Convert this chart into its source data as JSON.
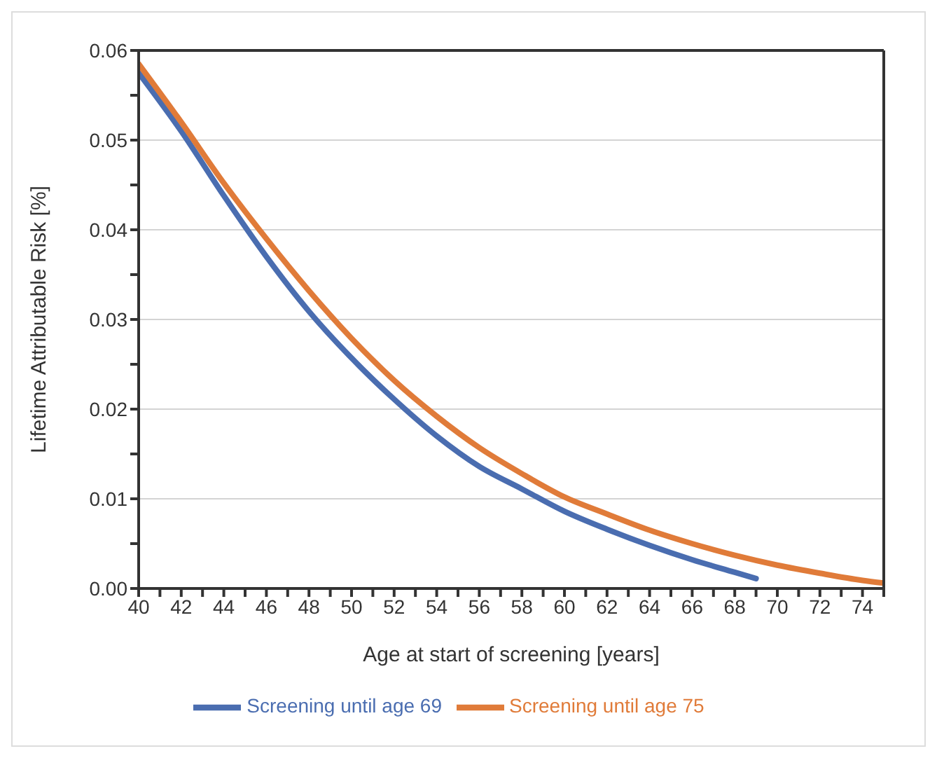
{
  "chart_data": {
    "type": "line",
    "xlabel": "Age at start of screening [years]",
    "ylabel": "Lifetime Attributable Risk [%]",
    "xlim": [
      40,
      75
    ],
    "xticks": [
      40,
      {
        "value": 41,
        "label": null
      },
      42,
      {
        "value": 43,
        "label": null
      },
      44,
      {
        "value": 45,
        "label": null
      },
      46,
      {
        "value": 47,
        "label": null
      },
      48,
      {
        "value": 49,
        "label": null
      },
      50,
      {
        "value": 51,
        "label": null
      },
      52,
      {
        "value": 53,
        "label": null
      },
      54,
      {
        "value": 55,
        "label": null
      },
      56,
      {
        "value": 57,
        "label": null
      },
      58,
      {
        "value": 59,
        "label": null
      },
      60,
      {
        "value": 61,
        "label": null
      },
      62,
      {
        "value": 63,
        "label": null
      },
      64,
      {
        "value": 65,
        "label": null
      },
      66,
      {
        "value": 67,
        "label": null
      },
      68,
      {
        "value": 69,
        "label": null
      },
      70,
      {
        "value": 71,
        "label": null
      },
      72,
      {
        "value": 73,
        "label": null
      },
      74,
      {
        "value": 75,
        "label": null
      }
    ],
    "ylim": [
      0,
      0.06
    ],
    "yticks": [
      {
        "value": 0,
        "label": "0.00"
      },
      {
        "value": 0.005,
        "label": null
      },
      {
        "value": 0.01,
        "label": "0.01"
      },
      {
        "value": 0.015,
        "label": null
      },
      {
        "value": 0.02,
        "label": "0.02"
      },
      {
        "value": 0.025,
        "label": null
      },
      {
        "value": 0.03,
        "label": "0.03"
      },
      {
        "value": 0.035,
        "label": null
      },
      {
        "value": 0.04,
        "label": "0.04"
      },
      {
        "value": 0.045,
        "label": null
      },
      {
        "value": 0.05,
        "label": "0.05"
      },
      {
        "value": 0.055,
        "label": null
      },
      {
        "value": 0.06,
        "label": "0.06"
      }
    ],
    "grid": "y",
    "legend": "bottom",
    "marker": "none",
    "line_style": "solid",
    "series": [
      {
        "name": "Screening until age 69",
        "color": "#4a6db0",
        "x": [
          40,
          42,
          44,
          46,
          48,
          50,
          52,
          54,
          56,
          58,
          60,
          62,
          64,
          66,
          68,
          69
        ],
        "values": [
          0.0575,
          0.051,
          0.0438,
          0.037,
          0.0309,
          0.0257,
          0.0211,
          0.017,
          0.0136,
          0.0111,
          0.0086,
          0.0066,
          0.0048,
          0.0032,
          0.0018,
          0.0011
        ]
      },
      {
        "name": "Screening until age 75",
        "color": "#e07b39",
        "x": [
          40,
          42,
          44,
          46,
          48,
          50,
          52,
          54,
          56,
          58,
          60,
          62,
          64,
          66,
          68,
          70,
          72,
          74,
          75
        ],
        "values": [
          0.0585,
          0.052,
          0.0452,
          0.039,
          0.0332,
          0.0279,
          0.0232,
          0.0192,
          0.0157,
          0.0128,
          0.0102,
          0.0083,
          0.0065,
          0.005,
          0.0037,
          0.0026,
          0.0017,
          0.0009,
          0.0006
        ]
      }
    ]
  }
}
